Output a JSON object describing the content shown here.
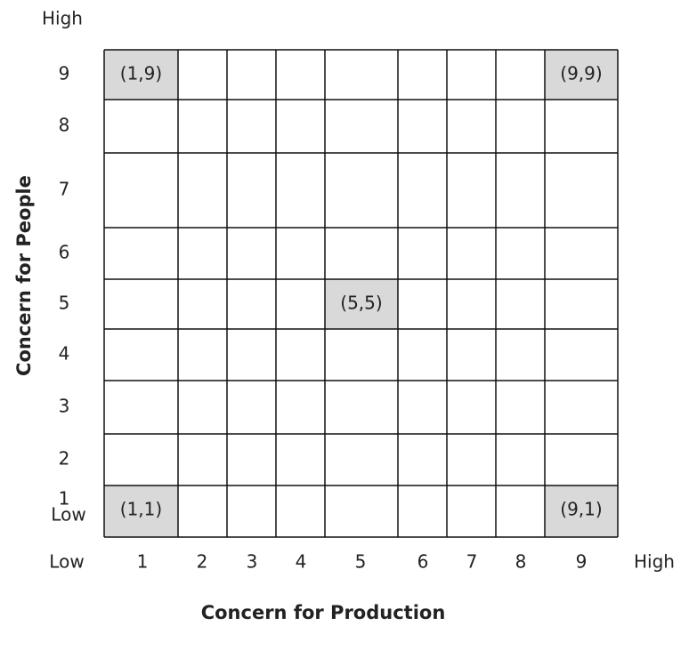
{
  "y_axis": {
    "title": "Concern for People",
    "high": "High",
    "low": "Low",
    "labels": [
      "9",
      "8",
      "7",
      "6",
      "5",
      "4",
      "3",
      "2",
      "1"
    ]
  },
  "x_axis": {
    "title": "Concern for Production",
    "low": "Low",
    "high": "High",
    "labels": [
      "1",
      "2",
      "3",
      "4",
      "5",
      "6",
      "7",
      "8",
      "9"
    ]
  },
  "highlighted_cells": [
    "(1,9)",
    "(9,9)",
    "(5,5)",
    "(1,1)",
    "(9,1)"
  ]
}
